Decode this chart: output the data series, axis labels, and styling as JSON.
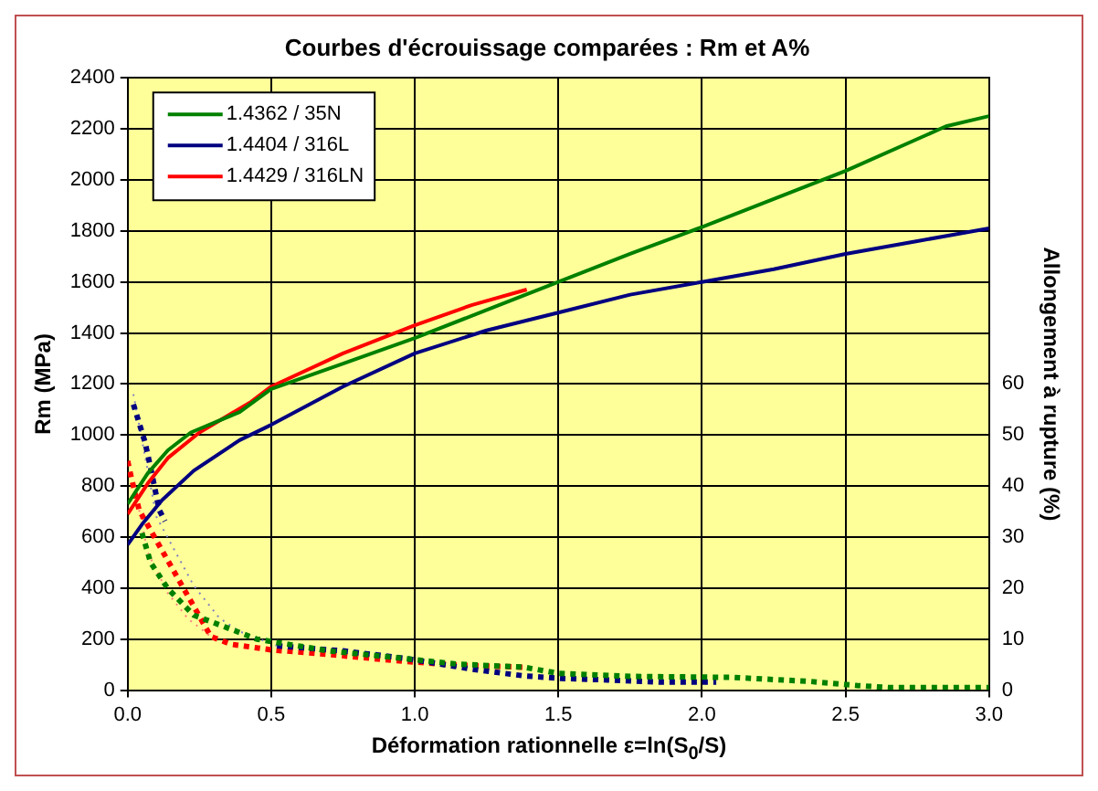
{
  "chart_data": {
    "type": "line",
    "title": "Courbes d'écrouissage comparées : Rm et A%",
    "xlabel": "Déformation rationnelle ε=ln(S$_{0}$/S)",
    "ylabel": "Rm (MPa)",
    "y2label": "Allongement à rupture (%)",
    "xlim": [
      0,
      3
    ],
    "xticks": [
      {
        "value": 0,
        "label": "0.0"
      },
      0.5,
      {
        "value": 1,
        "label": "1.0"
      },
      1.5,
      {
        "value": 2,
        "label": "2.0"
      },
      2.5,
      {
        "value": 3,
        "label": "3.0"
      }
    ],
    "ylim": [
      0,
      2400
    ],
    "yticks": [
      0,
      200,
      400,
      600,
      800,
      1000,
      1200,
      1400,
      1600,
      1800,
      2000,
      2200,
      2400
    ],
    "y2lim": [
      0,
      120
    ],
    "y2ticks": [
      0,
      10,
      20,
      30,
      40,
      50,
      60
    ],
    "grid": true,
    "legend": "top left",
    "marker": "none",
    "series": [
      {
        "name": "1.4362 / 35N",
        "color": "#008000",
        "line_style": "solid",
        "x": [
          0,
          0.07,
          0.14,
          0.22,
          0.39,
          0.5,
          0.75,
          1,
          1.25,
          1.5,
          1.75,
          2,
          2.25,
          2.5,
          2.75,
          2.85,
          3
        ],
        "values": [
          730,
          850,
          940,
          1010,
          1090,
          1180,
          1280,
          1380,
          1490,
          1600,
          1710,
          1815,
          1925,
          2035,
          2160,
          2210,
          2250
        ]
      },
      {
        "name": "1.4404 / 316L",
        "color": "#000080",
        "line_style": "solid",
        "x": [
          0,
          0.05,
          0.12,
          0.23,
          0.39,
          0.5,
          0.75,
          1,
          1.25,
          1.5,
          1.75,
          2,
          2.25,
          2.5,
          2.75,
          3
        ],
        "values": [
          570,
          650,
          745,
          860,
          980,
          1040,
          1190,
          1320,
          1410,
          1480,
          1550,
          1600,
          1650,
          1710,
          1760,
          1810
        ]
      },
      {
        "name": "1.4429 / 316LN",
        "color": "#ff0000",
        "line_style": "solid",
        "x": [
          0,
          0.07,
          0.14,
          0.25,
          0.43,
          0.5,
          0.75,
          1,
          1.2,
          1.39
        ],
        "values": [
          690,
          810,
          910,
          1010,
          1130,
          1190,
          1320,
          1430,
          1510,
          1570
        ]
      },
      {
        "color": "#008000",
        "line_style": "dashed",
        "axis": "y2",
        "x": [
          0.05,
          0.08,
          0.14,
          0.23,
          0.32,
          0.45,
          0.7,
          0.93,
          1.15,
          1.38,
          1.5,
          1.75,
          2.11,
          2.38,
          2.54,
          2.65,
          3
        ],
        "values": [
          30.8,
          25,
          19.9,
          14.7,
          12.8,
          10,
          7.7,
          6.4,
          5.1,
          4.5,
          3.3,
          2.7,
          2.5,
          1.7,
          0.9,
          0.5,
          0.5
        ]
      },
      {
        "color": "#000080",
        "line_style": "dashed",
        "axis": "y2",
        "x": [
          0.02,
          0.06,
          0.08,
          0.11,
          0.13,
          0.3,
          0.52,
          0.75,
          0.97,
          1.2,
          1.38,
          1.51,
          1.67,
          1.85,
          2.05
        ],
        "values": [
          56,
          48.7,
          43.6,
          35.3,
          33.1,
          null,
          8.7,
          7.7,
          6.2,
          4.1,
          2.8,
          2.3,
          2,
          1.6,
          1.6
        ]
      },
      {
        "color": "#ff0000",
        "line_style": "dashed",
        "axis": "y2",
        "x": [
          0,
          0.01,
          0.04,
          0.29,
          0.36,
          0.5,
          0.7,
          0.93,
          1.15,
          1.38
        ],
        "values": [
          44.9,
          42.3,
          35.3,
          10.5,
          9,
          7.9,
          7,
          5.8,
          4.9,
          4.5
        ]
      },
      {
        "type": "line",
        "color": "#8080c0",
        "line_style": "dotted",
        "axis": "y2",
        "x": [
          0.02,
          0.1,
          0.23,
          0.32,
          0.39,
          0.52
        ],
        "values": [
          58,
          34,
          20.5,
          14.1,
          11.5,
          8.7
        ]
      },
      {
        "type": "line",
        "color": "#ff8080",
        "line_style": "dotted",
        "axis": "y2",
        "x": [
          0.04,
          0.07,
          0.14,
          0.21,
          0.29
        ],
        "values": [
          35.3,
          27,
          19,
          14,
          10.5
        ]
      }
    ]
  }
}
